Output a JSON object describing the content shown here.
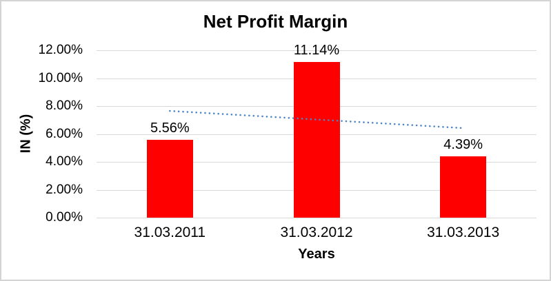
{
  "chart_data": {
    "type": "bar",
    "title": "Net Profit Margin",
    "xlabel": "Years",
    "ylabel": "IN (%)",
    "categories": [
      "31.03.2011",
      "31.03.2012",
      "31.03.2013"
    ],
    "values": [
      5.56,
      11.14,
      4.39
    ],
    "data_labels": [
      "5.56%",
      "11.14%",
      "4.39%"
    ],
    "ylim": [
      0,
      12
    ],
    "ytick_step": 2,
    "ytick_labels": [
      "0.00%",
      "2.00%",
      "4.00%",
      "6.00%",
      "8.00%",
      "10.00%",
      "12.00%"
    ],
    "grid": "horizontal",
    "legend": "none",
    "colors": {
      "bar": "#ff0000",
      "gridline": "#d9d9d9",
      "frame_border": "#d4d4d4",
      "trendline": "#4a86c6",
      "text": "#000000"
    },
    "trendline": {
      "type": "linear",
      "style": "dotted",
      "start_value": 7.65,
      "end_value": 6.42
    }
  }
}
